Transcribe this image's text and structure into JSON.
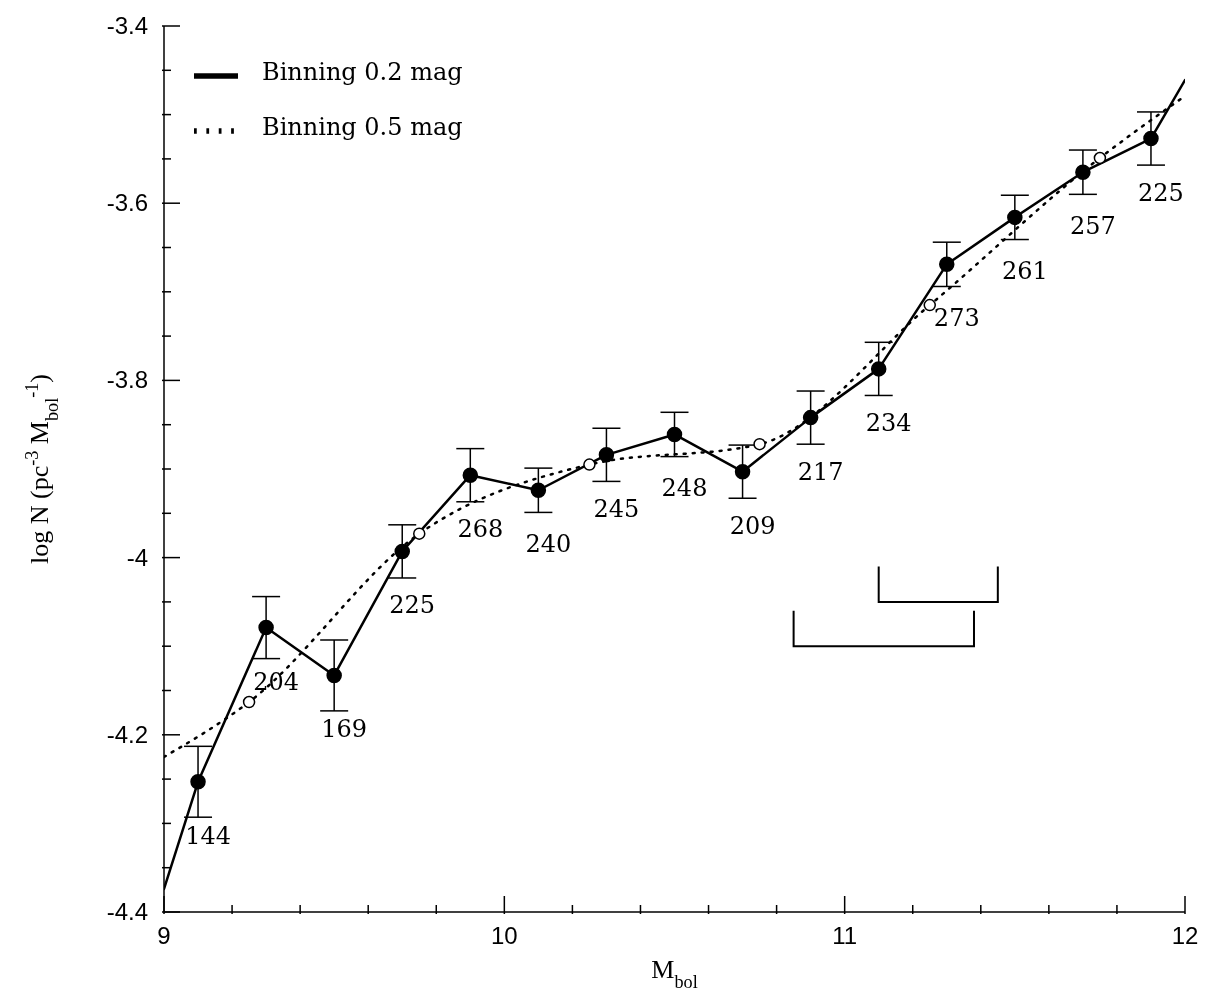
{
  "chart_data": {
    "type": "line",
    "xlabel": "M$_{bol}$",
    "ylabel": "log N (pc$^{-3}$ M$_{bol}$$^{-1}$)",
    "xlim": [
      9,
      12
    ],
    "ylim": [
      -4.4,
      -3.4
    ],
    "xticks": [
      9,
      {
        "value": 9.2,
        "label": null
      },
      {
        "value": 9.4,
        "label": null
      },
      {
        "value": 9.6,
        "label": null
      },
      {
        "value": 9.8,
        "label": null
      },
      10,
      {
        "value": 10.2,
        "label": null
      },
      {
        "value": 10.4,
        "label": null
      },
      {
        "value": 10.6,
        "label": null
      },
      {
        "value": 10.8,
        "label": null
      },
      11,
      {
        "value": 11.2,
        "label": null
      },
      {
        "value": 11.4,
        "label": null
      },
      {
        "value": 11.6,
        "label": null
      },
      {
        "value": 11.8,
        "label": null
      },
      12
    ],
    "yticks": [
      -4.4,
      {
        "value": -4.35,
        "label": null
      },
      {
        "value": -4.3,
        "label": null
      },
      {
        "value": -4.25,
        "label": null
      },
      -4.2,
      {
        "value": -4.15,
        "label": null
      },
      {
        "value": -4.1,
        "label": null
      },
      {
        "value": -4.05,
        "label": null
      },
      -4,
      {
        "value": -3.95,
        "label": null
      },
      {
        "value": -3.9,
        "label": null
      },
      {
        "value": -3.85,
        "label": null
      },
      -3.8,
      {
        "value": -3.75,
        "label": null
      },
      {
        "value": -3.7,
        "label": null
      },
      {
        "value": -3.65,
        "label": null
      },
      -3.6,
      {
        "value": -3.55,
        "label": null
      },
      {
        "value": -3.5,
        "label": null
      },
      {
        "value": -3.45,
        "label": null
      },
      -3.4
    ],
    "grid": false,
    "legend": "top left",
    "series": [
      {
        "name": "Binning 0.2 mag",
        "type": "line",
        "color": "#000000",
        "line_style": "solid",
        "marker": "none",
        "x": [
          9,
          9.1,
          9.3,
          9.5,
          9.7,
          9.9,
          10.1,
          10.3,
          10.5,
          10.7,
          10.9,
          11.1,
          11.3,
          11.5,
          11.7,
          11.9,
          12
        ],
        "values": [
          -4.374,
          -4.253,
          -4.079,
          -4.133,
          -3.993,
          -3.907,
          -3.924,
          -3.884,
          -3.861,
          -3.903,
          -3.842,
          -3.787,
          -3.669,
          -3.616,
          -3.565,
          -3.527,
          -3.461
        ]
      },
      {
        "type": "scatter",
        "color": "#000000",
        "marker": "circle",
        "x": [
          9.1,
          9.3,
          9.5,
          9.7,
          9.9,
          10.1,
          10.3,
          10.5,
          10.7,
          10.9,
          11.1,
          11.3,
          11.5,
          11.7,
          11.9
        ],
        "values": [
          -4.253,
          -4.079,
          -4.133,
          -3.993,
          -3.907,
          -3.924,
          -3.884,
          -3.861,
          -3.903,
          -3.842,
          -3.787,
          -3.669,
          -3.616,
          -3.565,
          -3.527
        ],
        "errors": [
          0.04,
          0.035,
          0.04,
          0.03,
          0.03,
          0.025,
          0.03,
          0.025,
          0.03,
          0.03,
          0.03,
          0.025,
          0.025,
          0.025,
          0.03
        ]
      },
      {
        "name": "Binning 0.5 mag",
        "type": "line",
        "color": "#000000",
        "line_style": "dotted",
        "marker": "none",
        "x": [
          9,
          9.25,
          9.75,
          10.25,
          10.75,
          11.25,
          11.75,
          12
        ],
        "values": [
          -4.225,
          -4.163,
          -3.973,
          -3.895,
          -3.872,
          -3.715,
          -3.549,
          -3.479
        ]
      },
      {
        "type": "scatter",
        "color": "#000000",
        "marker": "circle",
        "x": [
          9.25,
          9.75,
          10.25,
          10.75,
          11.25,
          11.75
        ],
        "values": [
          -4.163,
          -3.973,
          -3.895,
          -3.872,
          -3.715,
          -3.549
        ]
      }
    ],
    "annotations": [
      {
        "text": "144",
        "x": 9.1,
        "y": -4.253
      },
      {
        "text": "204",
        "x": 9.3,
        "y": -4.079
      },
      {
        "text": "169",
        "x": 9.5,
        "y": -4.133
      },
      {
        "text": "225",
        "x": 9.7,
        "y": -3.993
      },
      {
        "text": "268",
        "x": 9.9,
        "y": -3.907
      },
      {
        "text": "240",
        "x": 10.1,
        "y": -3.924
      },
      {
        "text": "245",
        "x": 10.3,
        "y": -3.884
      },
      {
        "text": "248",
        "x": 10.5,
        "y": -3.861
      },
      {
        "text": "209",
        "x": 10.7,
        "y": -3.903
      },
      {
        "text": "217",
        "x": 10.9,
        "y": -3.842
      },
      {
        "text": "234",
        "x": 11.1,
        "y": -3.787
      },
      {
        "text": "273",
        "x": 11.3,
        "y": -3.669
      },
      {
        "text": "261",
        "x": 11.5,
        "y": -3.616
      },
      {
        "text": "257",
        "x": 11.7,
        "y": -3.565
      },
      {
        "text": "225",
        "x": 11.9,
        "y": -3.527
      }
    ]
  }
}
